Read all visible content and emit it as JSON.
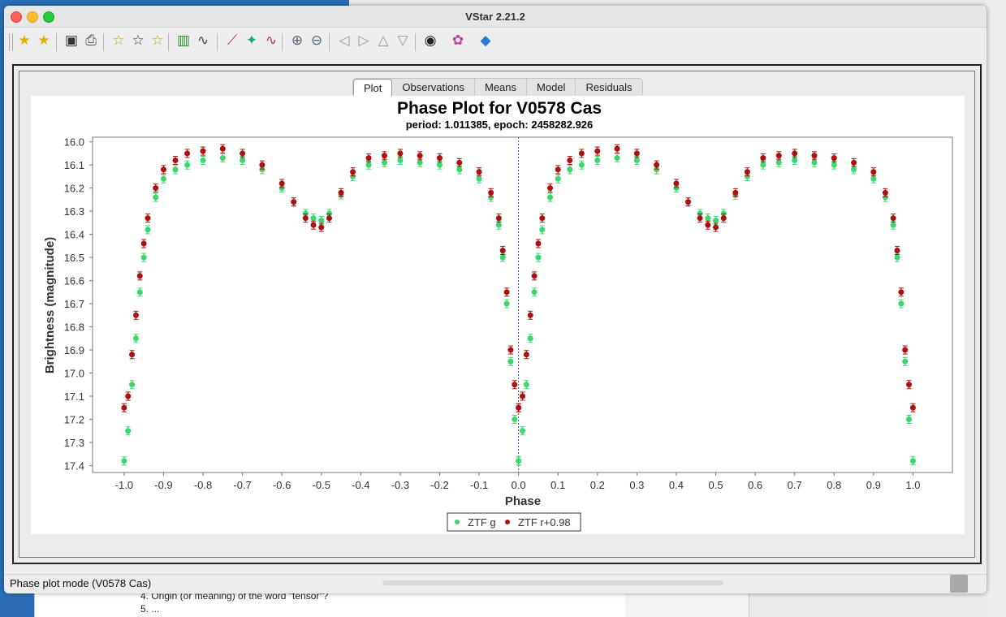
{
  "window": {
    "title": "VStar 2.21.2",
    "status": "Phase plot mode (V0578 Cas)"
  },
  "background_doc": {
    "lines": [
      "4.   Origin (or meaning) of the word \"tensor\"?",
      "5.   ..."
    ]
  },
  "toolbar": {
    "icons": [
      "new-star-icon",
      "new-star-file-icon",
      "save-icon",
      "print-icon",
      "star-info-icon",
      "star-search-icon",
      "star-filter-icon",
      "observation-filter-icon",
      "period-analysis-icon",
      "phase-plot-icon",
      "polynomial-fit-icon",
      "period-search-icon",
      "zoom-in-icon",
      "zoom-out-icon",
      "pan-left-icon",
      "pan-right-icon",
      "pan-up-icon",
      "pan-down-icon",
      "binoculars-icon",
      "plugin-icon",
      "info-icon"
    ]
  },
  "tabs": [
    "Plot",
    "Observations",
    "Means",
    "Model",
    "Residuals"
  ],
  "active_tab": "Plot",
  "colors": {
    "ztf_g": "#39d86a",
    "ztf_r": "#aa1111",
    "accent": "#3366cc"
  },
  "chart_data": {
    "type": "scatter",
    "title": "Phase Plot for V0578 Cas",
    "subtitle": "period: 1.011385, epoch: 2458282.926",
    "xlabel": "Phase",
    "ylabel": "Brightness (magnitude)",
    "xlim": [
      -1.08,
      1.1
    ],
    "ylim": [
      17.43,
      15.98
    ],
    "y_inverted": true,
    "x_ticks": [
      "-1.0",
      "-0.9",
      "-0.8",
      "-0.7",
      "-0.6",
      "-0.5",
      "-0.4",
      "-0.3",
      "-0.2",
      "-0.1",
      "0.0",
      "0.1",
      "0.2",
      "0.3",
      "0.4",
      "0.5",
      "0.6",
      "0.7",
      "0.8",
      "0.9",
      "1.0"
    ],
    "y_ticks": [
      "16.0",
      "16.1",
      "16.2",
      "16.3",
      "16.4",
      "16.5",
      "16.6",
      "16.7",
      "16.8",
      "16.9",
      "17.0",
      "17.1",
      "17.2",
      "17.3",
      "17.4"
    ],
    "vertical_marker_x": 0.0,
    "legend_position": "bottom",
    "series": [
      {
        "name": "ZTF g",
        "color": "#39d86a",
        "x": [
          0.0,
          0.01,
          0.02,
          0.03,
          0.04,
          0.05,
          0.06,
          0.08,
          0.1,
          0.13,
          0.16,
          0.2,
          0.25,
          0.3,
          0.35,
          0.4,
          0.43,
          0.46,
          0.48,
          0.5,
          0.52,
          0.55,
          0.58,
          0.62,
          0.66,
          0.7,
          0.75,
          0.8,
          0.85,
          0.9,
          0.93,
          0.95,
          0.96,
          0.97,
          0.98,
          0.99,
          1.0
        ],
        "y": [
          17.38,
          17.25,
          17.05,
          16.85,
          16.65,
          16.5,
          16.38,
          16.24,
          16.16,
          16.12,
          16.1,
          16.08,
          16.07,
          16.08,
          16.12,
          16.2,
          16.26,
          16.31,
          16.33,
          16.34,
          16.31,
          16.23,
          16.15,
          16.1,
          16.09,
          16.08,
          16.09,
          16.1,
          16.12,
          16.16,
          16.24,
          16.36,
          16.5,
          16.7,
          16.95,
          17.2,
          17.38
        ]
      },
      {
        "name": "ZTF r+0.98",
        "color": "#aa1111",
        "x": [
          0.0,
          0.01,
          0.02,
          0.03,
          0.04,
          0.05,
          0.06,
          0.08,
          0.1,
          0.13,
          0.16,
          0.2,
          0.25,
          0.3,
          0.35,
          0.4,
          0.43,
          0.46,
          0.48,
          0.5,
          0.52,
          0.55,
          0.58,
          0.62,
          0.66,
          0.7,
          0.75,
          0.8,
          0.85,
          0.9,
          0.93,
          0.95,
          0.96,
          0.97,
          0.98,
          0.99,
          1.0
        ],
        "y": [
          17.15,
          17.1,
          16.92,
          16.75,
          16.58,
          16.44,
          16.33,
          16.2,
          16.12,
          16.08,
          16.05,
          16.04,
          16.03,
          16.05,
          16.1,
          16.18,
          16.26,
          16.33,
          16.36,
          16.37,
          16.33,
          16.22,
          16.13,
          16.07,
          16.06,
          16.05,
          16.06,
          16.07,
          16.09,
          16.13,
          16.22,
          16.33,
          16.47,
          16.65,
          16.9,
          17.05,
          17.15
        ]
      }
    ]
  }
}
